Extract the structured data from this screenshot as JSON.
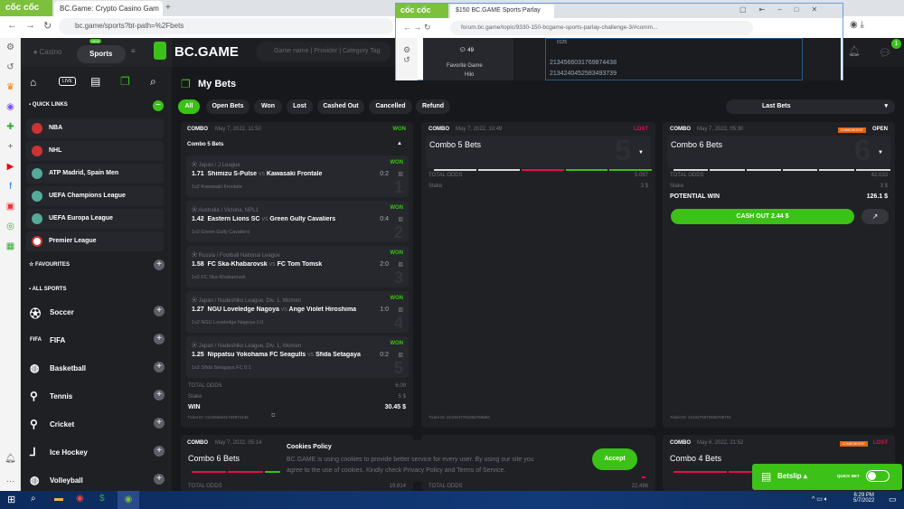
{
  "browser": {
    "brand": "cốc cốc",
    "tab_title": "BC.Game: Crypto Casino Gam",
    "url": "bc.game/sports?bt-path=%2Fbets"
  },
  "popup": {
    "brand": "cốc cốc",
    "tab_title": "$150 BC.GAME Sports Parlay",
    "url": "forum.bc.game/topic/9330-150-bcgame-sports-parlay-challenge-3/#comm...",
    "comments": "49",
    "fav_label": "Favorite Game",
    "fav_value": "Hilo",
    "ids": [
      "2134566031769874438",
      "2134240452583493739"
    ],
    "partial": "0125"
  },
  "header": {
    "casino": "Casino",
    "sports": "Sports",
    "new_badge": "NEW",
    "logo": "BC.GAME",
    "search_placeholder": "Game name | Provider | Category Tag",
    "chat_badge": "1"
  },
  "sidebar": {
    "nav": {
      "live": "LIVE"
    },
    "quick_links_title": "QUICK LINKS",
    "quick_links": [
      "NBA",
      "NHL",
      "ATP Madrid, Spain Men",
      "UEFA Champions League",
      "UEFA Europa League",
      "Premier League"
    ],
    "favourites_title": "FAVOURITES",
    "all_sports_title": "ALL SPORTS",
    "sports": [
      "Soccer",
      "FIFA",
      "Basketball",
      "Tennis",
      "Cricket",
      "Ice Hockey",
      "Volleyball"
    ]
  },
  "main": {
    "title": "My Bets",
    "filters": [
      "All",
      "Open Bets",
      "Won",
      "Lost",
      "Cashed Out",
      "Cancelled",
      "Refund"
    ],
    "active_filter": "All",
    "sort": "Last Bets"
  },
  "cards": [
    {
      "type": "COMBO",
      "date": "May 7, 2022, 11:50",
      "status": "WON",
      "title": "Combo 5 Bets",
      "legs": [
        {
          "league": "Japan / J.League",
          "odds": "1.71",
          "home": "Shimizu S-Pulse",
          "away": "Kawasaki Frontale",
          "score": "0:2",
          "pick": "1x2 Kawasaki Frontale",
          "status": "WON",
          "n": "1"
        },
        {
          "league": "Australia / Victoria, NPL1",
          "odds": "1.42",
          "home": "Eastern Lions SC",
          "away": "Green Gully Cavaliers",
          "score": "0:4",
          "pick": "1x2 Green Gully Cavaliers",
          "status": "WON",
          "n": "2"
        },
        {
          "league": "Russia / Football National League",
          "odds": "1.58",
          "home": "FC Ska-Khabarovsk",
          "away": "FC Tom Tomsk",
          "score": "2:0",
          "pick": "1x2 FC Ska-Khabarovsk",
          "status": "WON",
          "n": "3"
        },
        {
          "league": "Japan / Nadeshiko League, Div. 1, Women",
          "odds": "1.27",
          "home": "NGU Loveledge Nagoya",
          "away": "Ange Violet Hiroshima",
          "score": "1:0",
          "pick": "1x2 NGU Loveledge Nagoya  1:0",
          "status": "WON",
          "n": "4"
        },
        {
          "league": "Japan / Nadeshiko League, Div. 1, Women",
          "odds": "1.25",
          "home": "Nippatsu Yokohama FC Seagulls",
          "away": "Sfida Setagaya FC",
          "score": "0:2",
          "pick": "1x2 Sfida Setagaya FC  0:1",
          "status": "WON",
          "n": "5"
        }
      ],
      "total_odds_label": "TOTAL ODDS",
      "total_odds": "6.09",
      "stake_label": "Stake",
      "stake": "5 $",
      "win_label": "WIN",
      "win": "30.45 $",
      "ticket": "Ticket ID: 2134566031769874438"
    },
    {
      "type": "COMBO",
      "date": "May 7, 2022, 10:49",
      "status": "LOST",
      "title": "Combo 5 Bets",
      "big": "5",
      "total_odds_label": "TOTAL ODDS",
      "total_odds": "5.087",
      "stake_label": "Stake",
      "stake": "3 $",
      "ticket": "Ticket ID: 2134547784356759693"
    },
    {
      "type": "COMBO",
      "date": "May 7, 2022, 05:30",
      "badge": "COMBOBOOST",
      "status": "OPEN",
      "title": "Combo 6 Bets",
      "big": "6",
      "total_odds_label": "TOTAL ODDS",
      "total_odds": "42.033",
      "stake_label": "Stake",
      "stake": "3 $",
      "win_label": "POTENTIAL WIN",
      "win": "126.1 $",
      "cashout": "CASH OUT 2.44 $",
      "ticket": "Ticket ID: 2134475970836709703"
    },
    {
      "type": "COMBO",
      "date": "May 7, 2022, 05:14",
      "title": "Combo 6 Bets",
      "total_odds_label": "TOTAL ODDS",
      "total_odds": "19.814"
    },
    {
      "type": "COMBO",
      "date": "May 6, 2022, 21:52",
      "badge": "COMBOBOOST",
      "status": "LOST",
      "title": "Combo 4 Bets",
      "total_odds_label": "TOTAL ODDS",
      "total_odds": "22.496"
    }
  ],
  "cookies": {
    "title": "Cookies Policy",
    "text1": "BC.GAME is using cookies to provide better service for every user. By using our site you",
    "text2": "agree to the use of cookies. Kindly check Privacy Policy and Terms of Service.",
    "accept": "Accept"
  },
  "betslip": {
    "label": "Betslip",
    "quick_bet": "QUICK BET"
  },
  "taskbar": {
    "time": "6:29 PM",
    "date": "5/7/2022"
  },
  "colors": {
    "green": "#3bc117",
    "red": "#e0114b",
    "orange": "#e8620f",
    "bg": "#17181b"
  }
}
